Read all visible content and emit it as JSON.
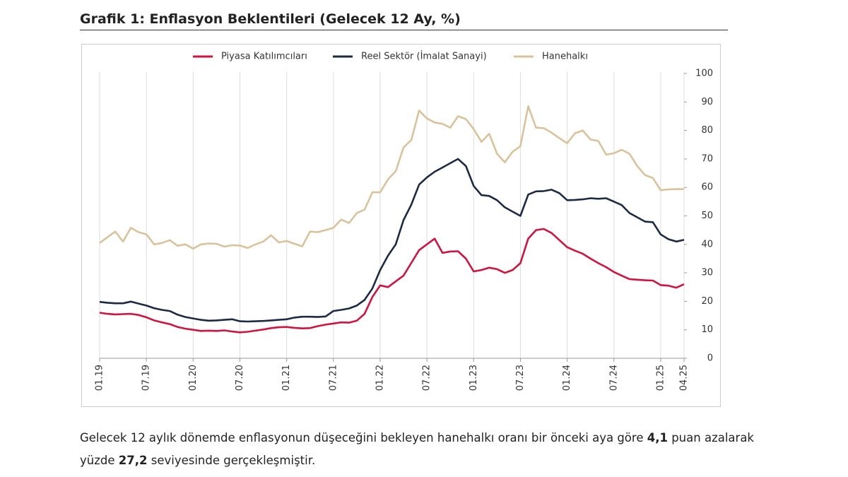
{
  "header": {
    "title": "Grafik 1: Enflasyon Beklentileri (Gelecek 12 Ay, %)"
  },
  "chart_data": {
    "type": "line",
    "legend": "top",
    "categories": [
      "01.19",
      null,
      null,
      null,
      null,
      null,
      "07.19",
      null,
      null,
      null,
      null,
      null,
      "01.20",
      null,
      null,
      null,
      null,
      null,
      "07.20",
      null,
      null,
      null,
      null,
      null,
      "01.21",
      null,
      null,
      null,
      null,
      null,
      "07.21",
      null,
      null,
      null,
      null,
      null,
      "01.22",
      null,
      null,
      null,
      null,
      null,
      "07.22",
      null,
      null,
      null,
      null,
      null,
      "01.23",
      null,
      null,
      null,
      null,
      null,
      "07.23",
      null,
      null,
      null,
      null,
      null,
      "01.24",
      null,
      null,
      null,
      null,
      null,
      "07.24",
      null,
      null,
      null,
      null,
      null,
      "01.25",
      null,
      null,
      "04.25"
    ],
    "ylim": [
      0,
      100
    ],
    "yticks": [
      0,
      10,
      20,
      30,
      40,
      50,
      60,
      70,
      80,
      90,
      100
    ],
    "series": [
      {
        "name": "Piyasa Katılımcıları",
        "color": "#d0143f",
        "values": [
          16,
          15.6,
          15.4,
          15.5,
          15.6,
          15.2,
          14.4,
          13.3,
          12.6,
          12,
          11,
          10.4,
          10,
          9.6,
          9.7,
          9.6,
          9.8,
          9.4,
          9.1,
          9.3,
          9.7,
          10.1,
          10.6,
          10.9,
          11,
          10.7,
          10.5,
          10.6,
          11.3,
          11.8,
          12.2,
          12.6,
          12.5,
          13.2,
          15.6,
          21.5,
          25.6,
          25,
          27,
          29,
          33.5,
          38,
          40,
          42,
          37,
          37.5,
          37.6,
          35,
          30.5,
          31,
          31.8,
          31.3,
          30,
          31,
          33.4,
          42,
          45,
          45.4,
          44,
          41.5,
          39,
          37.8,
          36.7,
          35,
          33.4,
          32,
          30.3,
          29,
          27.8,
          27.6,
          27.4,
          27.3,
          25.7,
          25.5,
          24.8,
          26
        ]
      },
      {
        "name": "Reel Sektör (İmalat Sanayi)",
        "color": "#1c2a44",
        "values": [
          19.8,
          19.5,
          19.3,
          19.3,
          19.9,
          19.2,
          18.5,
          17.6,
          17,
          16.6,
          15.3,
          14.5,
          14,
          13.5,
          13.2,
          13.3,
          13.5,
          13.7,
          13,
          12.9,
          13,
          13.1,
          13.3,
          13.5,
          13.7,
          14.3,
          14.6,
          14.6,
          14.5,
          14.7,
          16.6,
          17,
          17.5,
          18.5,
          20.5,
          24.5,
          31,
          36,
          40,
          48.5,
          54,
          61,
          63.5,
          65.5,
          67,
          68.5,
          70,
          67.5,
          60.5,
          57.3,
          57,
          55.5,
          53,
          51.5,
          50,
          57.5,
          58.6,
          58.7,
          59.2,
          58,
          55.5,
          55.6,
          55.8,
          56.2,
          56,
          56.2,
          55,
          53.8,
          51,
          49.5,
          48,
          47.8,
          43.5,
          41.8,
          41,
          41.6
        ]
      },
      {
        "name": "Hanehalkı",
        "color": "#d9c39c",
        "values": [
          40.5,
          42.5,
          44.5,
          41,
          45.8,
          44.3,
          43.5,
          40,
          40.5,
          41.5,
          39.5,
          40,
          38.5,
          40,
          40.3,
          40.2,
          39.2,
          39.7,
          39.6,
          38.7,
          40,
          41,
          43.2,
          40.7,
          41.2,
          40.2,
          39.3,
          44.5,
          44.3,
          45,
          45.8,
          48.7,
          47.5,
          51,
          52.2,
          58.3,
          58.3,
          62.8,
          65.7,
          74,
          76.7,
          87,
          84.2,
          82.8,
          82.3,
          81,
          85,
          84,
          80.5,
          76,
          78.8,
          71.8,
          68.8,
          72.5,
          74.5,
          88.5,
          81,
          80.8,
          79.2,
          77.3,
          75.5,
          79,
          80,
          76.8,
          76.3,
          71.5,
          72,
          73.2,
          71.8,
          67.5,
          64.3,
          63.3,
          59,
          59.3,
          59.4,
          59.4
        ]
      }
    ]
  },
  "paragraph": {
    "parts": [
      "Gelecek 12 aylık dönemde enflasyonun düşeceğini bekleyen hanehalkı oranı bir önceki aya göre ",
      "4,1",
      " puan azalarak yüzde ",
      "27,2",
      " seviyesinde gerçekleşmiştir."
    ]
  }
}
